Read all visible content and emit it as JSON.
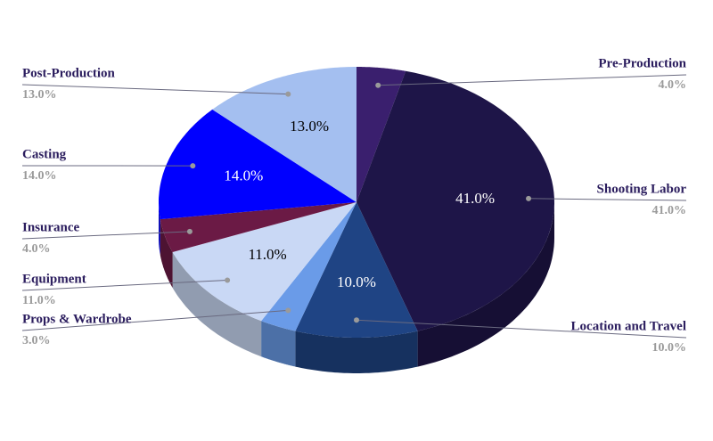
{
  "chart_data": {
    "type": "pie3d",
    "categories": [
      "Pre-Production",
      "Shooting Labor",
      "Location and Travel",
      "Props & Wardrobe",
      "Equipment",
      "Insurance",
      "Casting",
      "Post-Production"
    ],
    "values": [
      4,
      41,
      10,
      3,
      11,
      4,
      14,
      13
    ],
    "value_labels": [
      "4.0%",
      "41.0%",
      "10.0%",
      "3.0%",
      "11.0%",
      "4.0%",
      "14.0%",
      "13.0%"
    ],
    "colors": [
      "#3a1f6e",
      "#1e1548",
      "#1f4484",
      "#6a9be8",
      "#c9d8f5",
      "#6b1a45",
      "#0000ff",
      "#a4bff0"
    ]
  }
}
